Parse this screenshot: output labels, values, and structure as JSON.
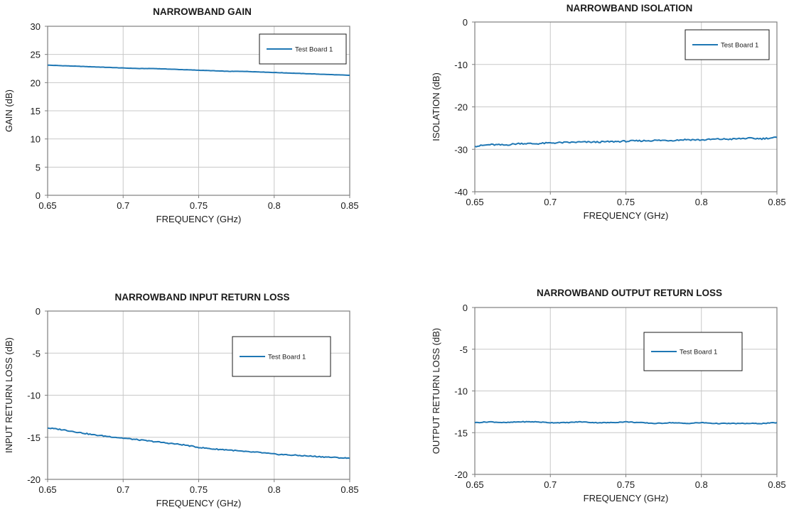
{
  "chart_data": [
    {
      "type": "line",
      "title": "NARROWBAND GAIN",
      "xlabel": "FREQUENCY (GHz)",
      "ylabel": "GAIN (dB)",
      "xlim": [
        0.65,
        0.85
      ],
      "ylim": [
        0,
        30
      ],
      "xticks": [
        0.65,
        0.7,
        0.75,
        0.8,
        0.85
      ],
      "xtick_labels": [
        "0.65",
        "0.7",
        "0.75",
        "0.8",
        "0.85"
      ],
      "yticks": [
        0,
        5,
        10,
        15,
        20,
        25,
        30
      ],
      "ytick_labels": [
        "0",
        "5",
        "10",
        "15",
        "20",
        "25",
        "30"
      ],
      "grid": true,
      "legend_position": "top-right",
      "series": [
        {
          "name": "Test Board 1",
          "color": "#1f77b4",
          "x": [
            0.65,
            0.66,
            0.67,
            0.68,
            0.69,
            0.7,
            0.71,
            0.72,
            0.73,
            0.74,
            0.75,
            0.76,
            0.77,
            0.78,
            0.79,
            0.8,
            0.81,
            0.82,
            0.83,
            0.84,
            0.85
          ],
          "y": [
            23.1,
            23.0,
            22.9,
            22.8,
            22.7,
            22.6,
            22.5,
            22.5,
            22.4,
            22.3,
            22.2,
            22.1,
            22.0,
            22.0,
            21.9,
            21.8,
            21.7,
            21.6,
            21.5,
            21.4,
            21.3
          ]
        }
      ]
    },
    {
      "type": "line",
      "title": "NARROWBAND ISOLATION",
      "xlabel": "FREQUENCY (GHz)",
      "ylabel": "ISOLATION (dB)",
      "xlim": [
        0.65,
        0.85
      ],
      "ylim": [
        -40,
        0
      ],
      "xticks": [
        0.65,
        0.7,
        0.75,
        0.8,
        0.85
      ],
      "xtick_labels": [
        "0.65",
        "0.7",
        "0.75",
        "0.8",
        "0.85"
      ],
      "yticks": [
        -40,
        -30,
        -20,
        -10,
        0
      ],
      "ytick_labels": [
        "-40",
        "-30",
        "-20",
        "-10",
        "0"
      ],
      "grid": true,
      "legend_position": "top-right",
      "series": [
        {
          "name": "Test Board 1",
          "color": "#1f77b4",
          "x": [
            0.65,
            0.66,
            0.67,
            0.68,
            0.69,
            0.7,
            0.71,
            0.72,
            0.73,
            0.74,
            0.75,
            0.76,
            0.77,
            0.78,
            0.79,
            0.8,
            0.81,
            0.82,
            0.83,
            0.84,
            0.85
          ],
          "y": [
            -29.3,
            -28.9,
            -29.0,
            -28.6,
            -28.7,
            -28.5,
            -28.4,
            -28.3,
            -28.3,
            -28.2,
            -28.1,
            -28.0,
            -27.9,
            -27.9,
            -27.7,
            -27.8,
            -27.6,
            -27.6,
            -27.4,
            -27.5,
            -27.2
          ]
        }
      ]
    },
    {
      "type": "line",
      "title": "NARROWBAND INPUT RETURN LOSS",
      "xlabel": "FREQUENCY (GHz)",
      "ylabel": "INPUT RETURN LOSS (dB)",
      "xlim": [
        0.65,
        0.85
      ],
      "ylim": [
        -20,
        0
      ],
      "xticks": [
        0.65,
        0.7,
        0.75,
        0.8,
        0.85
      ],
      "xtick_labels": [
        "0.65",
        "0.7",
        "0.75",
        "0.8",
        "0.85"
      ],
      "yticks": [
        -20,
        -15,
        -10,
        -5,
        0
      ],
      "ytick_labels": [
        "-20",
        "-15",
        "-10",
        "-5",
        "0"
      ],
      "grid": true,
      "legend_position": "top-right",
      "series": [
        {
          "name": "Test Board 1",
          "color": "#1f77b4",
          "x": [
            0.65,
            0.66,
            0.67,
            0.68,
            0.69,
            0.7,
            0.71,
            0.72,
            0.73,
            0.74,
            0.75,
            0.76,
            0.77,
            0.78,
            0.79,
            0.8,
            0.81,
            0.82,
            0.83,
            0.84,
            0.85
          ],
          "y": [
            -13.9,
            -14.1,
            -14.4,
            -14.7,
            -14.9,
            -15.1,
            -15.3,
            -15.5,
            -15.7,
            -15.9,
            -16.2,
            -16.4,
            -16.5,
            -16.7,
            -16.8,
            -17.0,
            -17.1,
            -17.2,
            -17.3,
            -17.4,
            -17.5
          ]
        }
      ]
    },
    {
      "type": "line",
      "title": "NARROWBAND OUTPUT RETURN LOSS",
      "xlabel": "FREQUENCY (GHz)",
      "ylabel": "OUTPUT RETURN LOSS (dB)",
      "xlim": [
        0.65,
        0.85
      ],
      "ylim": [
        -20,
        0
      ],
      "xticks": [
        0.65,
        0.7,
        0.75,
        0.8,
        0.85
      ],
      "xtick_labels": [
        "0.65",
        "0.7",
        "0.75",
        "0.8",
        "0.85"
      ],
      "yticks": [
        -20,
        -15,
        -10,
        -5,
        0
      ],
      "ytick_labels": [
        "-20",
        "-15",
        "-10",
        "-5",
        "0"
      ],
      "grid": true,
      "legend_position": "top-right",
      "series": [
        {
          "name": "Test Board 1",
          "color": "#1f77b4",
          "x": [
            0.65,
            0.66,
            0.67,
            0.68,
            0.69,
            0.7,
            0.71,
            0.72,
            0.73,
            0.74,
            0.75,
            0.76,
            0.77,
            0.78,
            0.79,
            0.8,
            0.81,
            0.82,
            0.83,
            0.84,
            0.85
          ],
          "y": [
            -13.8,
            -13.7,
            -13.8,
            -13.7,
            -13.7,
            -13.8,
            -13.8,
            -13.7,
            -13.8,
            -13.8,
            -13.7,
            -13.8,
            -13.9,
            -13.8,
            -13.9,
            -13.8,
            -13.9,
            -13.9,
            -13.9,
            -13.9,
            -13.8
          ]
        }
      ]
    }
  ]
}
